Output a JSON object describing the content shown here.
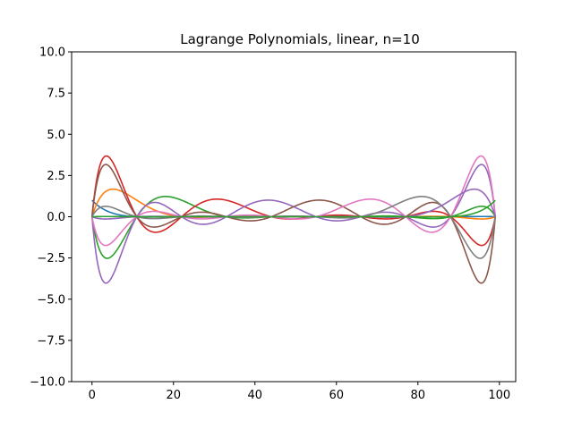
{
  "chart_data": {
    "type": "line",
    "title": "Lagrange Polynomials, linear, n=10",
    "xlabel": "",
    "ylabel": "",
    "xlim": [
      -5,
      104
    ],
    "ylim": [
      -10.0,
      10.0
    ],
    "x_ticks": [
      0,
      20,
      40,
      60,
      80,
      100
    ],
    "x_tick_labels": [
      "0",
      "20",
      "40",
      "60",
      "80",
      "100"
    ],
    "y_ticks": [
      -10.0,
      -7.5,
      -5.0,
      -2.5,
      0.0,
      2.5,
      5.0,
      7.5,
      10.0
    ],
    "y_tick_labels": [
      "−10.0",
      "−7.5",
      "−5.0",
      "−2.5",
      "0.0",
      "2.5",
      "5.0",
      "7.5",
      "10.0"
    ],
    "grid": false,
    "x_domain": [
      0,
      99
    ],
    "nodes": [
      0,
      11,
      22,
      33,
      44,
      55,
      66,
      77,
      88,
      99
    ],
    "normalization": [
      1,
      1,
      1,
      1,
      1,
      1,
      1,
      1,
      1,
      1
    ],
    "series": [
      {
        "node_index": 0,
        "color": "#1f77b4"
      },
      {
        "node_index": 1,
        "color": "#ff7f0e"
      },
      {
        "node_index": 2,
        "color": "#2ca02c"
      },
      {
        "node_index": 3,
        "color": "#d62728"
      },
      {
        "node_index": 4,
        "color": "#9467bd"
      },
      {
        "node_index": 5,
        "color": "#8c564b"
      },
      {
        "node_index": 6,
        "color": "#e377c2"
      },
      {
        "node_index": 7,
        "color": "#7f7f7f"
      },
      {
        "node_index": 8,
        "color": "#9467bd"
      },
      {
        "node_index": 9,
        "color": "#2ca02c"
      }
    ]
  }
}
